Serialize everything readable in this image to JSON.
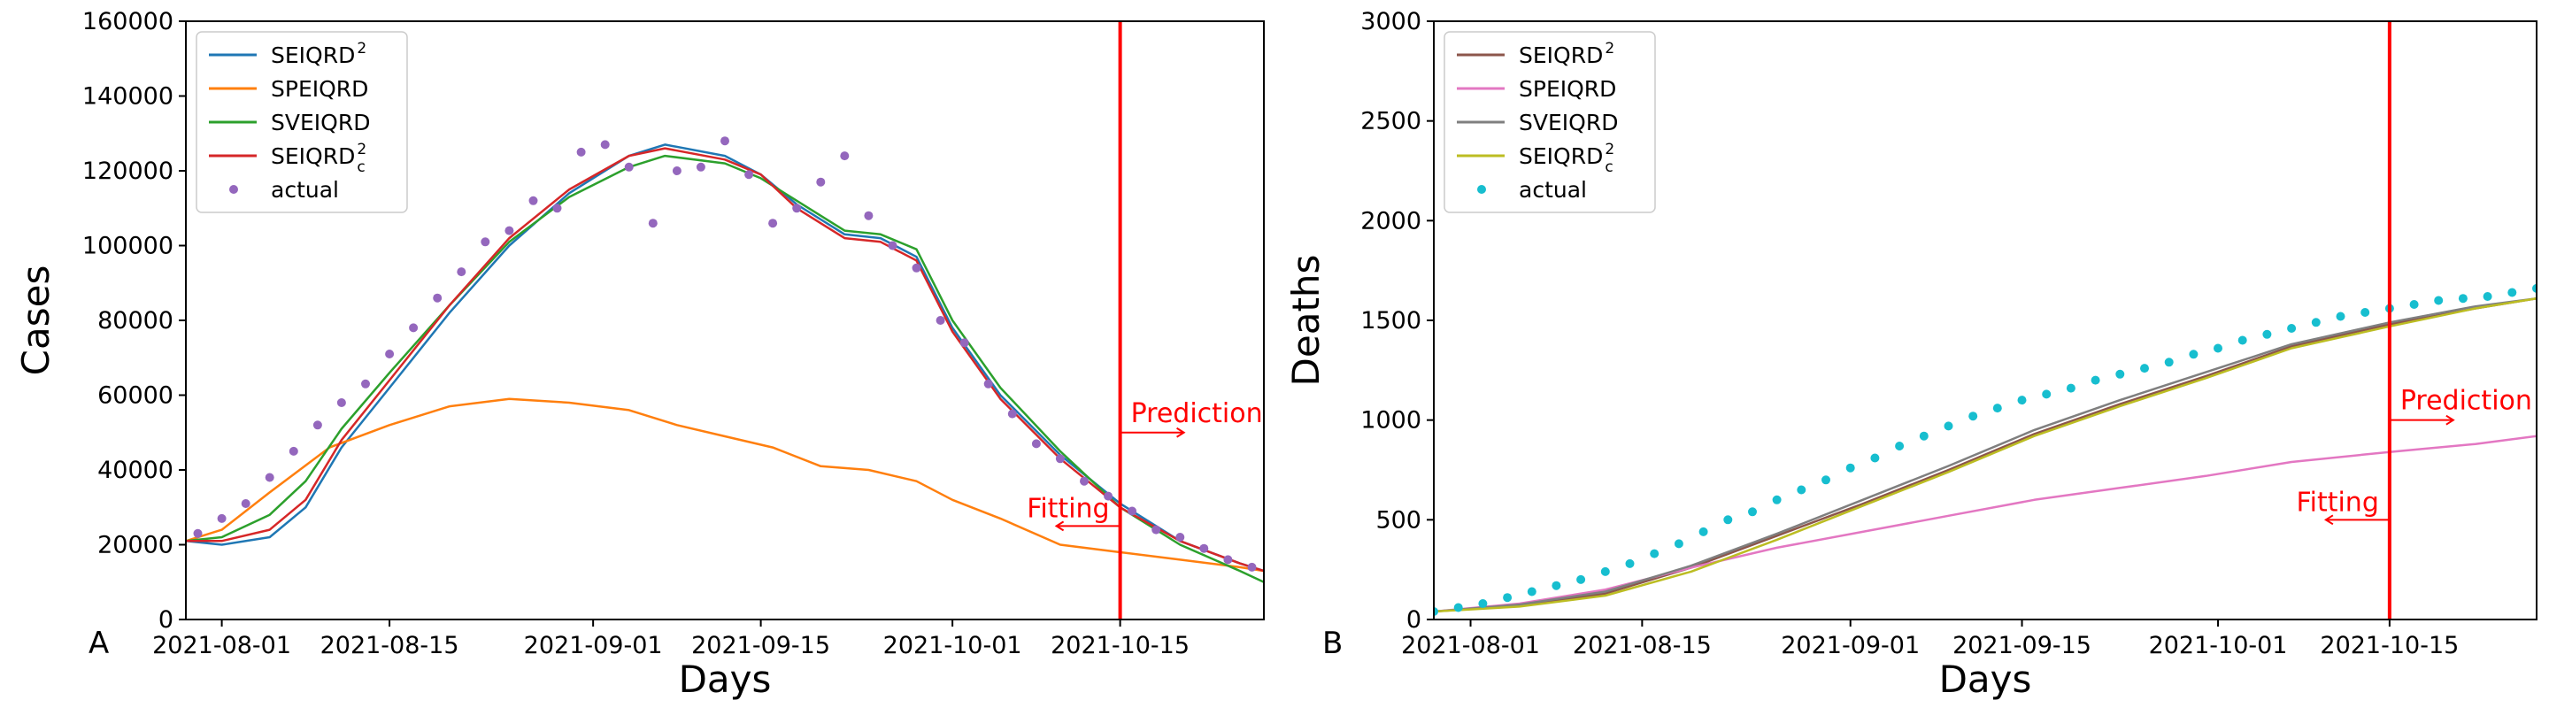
{
  "chart_data": [
    {
      "type": "line",
      "panel": "A",
      "xlabel": "Days",
      "ylabel": "Cases",
      "x_ticks": [
        "2021-08-01",
        "2021-08-15",
        "2021-09-01",
        "2021-09-15",
        "2021-10-01",
        "2021-10-15"
      ],
      "y_ticks": [
        "0",
        "20000",
        "40000",
        "60000",
        "80000",
        "100000",
        "120000",
        "140000",
        "160000"
      ],
      "xlim": [
        "2021-07-29",
        "2021-10-27"
      ],
      "ylim": [
        0,
        160000
      ],
      "split_date": "2021-10-15",
      "split_color": "#ff0000",
      "annotations": {
        "right": "Prediction",
        "left": "Fitting"
      },
      "legend_position": "top-left",
      "series": [
        {
          "name": "SEIQRD",
          "name_sup": "2",
          "name_sub": "",
          "color": "#1f77b4",
          "style": "line",
          "x": [
            "2021-07-29",
            "2021-08-01",
            "2021-08-05",
            "2021-08-08",
            "2021-08-11",
            "2021-08-15",
            "2021-08-20",
            "2021-08-25",
            "2021-08-30",
            "2021-09-04",
            "2021-09-07",
            "2021-09-12",
            "2021-09-15",
            "2021-09-18",
            "2021-09-22",
            "2021-09-25",
            "2021-09-28",
            "2021-10-01",
            "2021-10-05",
            "2021-10-10",
            "2021-10-15",
            "2021-10-20",
            "2021-10-25",
            "2021-10-27"
          ],
          "y": [
            21000,
            20000,
            22000,
            30000,
            46000,
            62000,
            82000,
            100000,
            114000,
            124000,
            127000,
            124000,
            119000,
            111000,
            103000,
            102000,
            97000,
            78000,
            60000,
            44000,
            31000,
            21000,
            15000,
            13000
          ]
        },
        {
          "name": "SPEIQRD",
          "name_sup": "",
          "name_sub": "",
          "color": "#ff7f0e",
          "style": "line",
          "x": [
            "2021-07-29",
            "2021-08-01",
            "2021-08-05",
            "2021-08-10",
            "2021-08-15",
            "2021-08-20",
            "2021-08-25",
            "2021-08-30",
            "2021-09-04",
            "2021-09-08",
            "2021-09-12",
            "2021-09-16",
            "2021-09-20",
            "2021-09-24",
            "2021-09-28",
            "2021-10-01",
            "2021-10-05",
            "2021-10-10",
            "2021-10-15",
            "2021-10-20",
            "2021-10-25",
            "2021-10-27"
          ],
          "y": [
            21000,
            24000,
            34000,
            46000,
            52000,
            57000,
            59000,
            58000,
            56000,
            52000,
            49000,
            46000,
            41000,
            40000,
            37000,
            32000,
            27000,
            20000,
            18000,
            16000,
            14000,
            13000
          ]
        },
        {
          "name": "SVEIQRD",
          "name_sup": "",
          "name_sub": "",
          "color": "#2ca02c",
          "style": "line",
          "x": [
            "2021-07-29",
            "2021-08-01",
            "2021-08-05",
            "2021-08-08",
            "2021-08-11",
            "2021-08-15",
            "2021-08-20",
            "2021-08-25",
            "2021-08-30",
            "2021-09-04",
            "2021-09-07",
            "2021-09-12",
            "2021-09-15",
            "2021-09-18",
            "2021-09-22",
            "2021-09-25",
            "2021-09-28",
            "2021-10-01",
            "2021-10-05",
            "2021-10-10",
            "2021-10-15",
            "2021-10-20",
            "2021-10-25",
            "2021-10-27"
          ],
          "y": [
            21000,
            22000,
            28000,
            37000,
            51000,
            66000,
            84000,
            101000,
            113000,
            121000,
            124000,
            122000,
            118000,
            112000,
            104000,
            103000,
            99000,
            80000,
            62000,
            45000,
            30000,
            20000,
            13000,
            10000
          ]
        },
        {
          "name": "SEIQRD",
          "name_sup": "2",
          "name_sub": "c",
          "color": "#d62728",
          "style": "line",
          "x": [
            "2021-07-29",
            "2021-08-01",
            "2021-08-05",
            "2021-08-08",
            "2021-08-11",
            "2021-08-15",
            "2021-08-20",
            "2021-08-25",
            "2021-08-30",
            "2021-09-04",
            "2021-09-07",
            "2021-09-12",
            "2021-09-15",
            "2021-09-18",
            "2021-09-22",
            "2021-09-25",
            "2021-09-28",
            "2021-10-01",
            "2021-10-05",
            "2021-10-10",
            "2021-10-15",
            "2021-10-20",
            "2021-10-25",
            "2021-10-27"
          ],
          "y": [
            21000,
            21000,
            24000,
            32000,
            48000,
            64000,
            84000,
            102000,
            115000,
            124000,
            126000,
            123000,
            119000,
            110000,
            102000,
            101000,
            96000,
            77000,
            59000,
            43000,
            30000,
            21000,
            15000,
            13000
          ]
        },
        {
          "name": "actual",
          "name_sup": "",
          "name_sub": "",
          "color": "#9467bd",
          "style": "scatter",
          "x": [
            "2021-07-30",
            "2021-08-01",
            "2021-08-03",
            "2021-08-05",
            "2021-08-07",
            "2021-08-09",
            "2021-08-11",
            "2021-08-13",
            "2021-08-15",
            "2021-08-17",
            "2021-08-19",
            "2021-08-21",
            "2021-08-23",
            "2021-08-25",
            "2021-08-27",
            "2021-08-29",
            "2021-08-31",
            "2021-09-02",
            "2021-09-04",
            "2021-09-06",
            "2021-09-08",
            "2021-09-10",
            "2021-09-12",
            "2021-09-14",
            "2021-09-16",
            "2021-09-18",
            "2021-09-20",
            "2021-09-22",
            "2021-09-24",
            "2021-09-26",
            "2021-09-28",
            "2021-09-30",
            "2021-10-02",
            "2021-10-04",
            "2021-10-06",
            "2021-10-08",
            "2021-10-10",
            "2021-10-12",
            "2021-10-14",
            "2021-10-16",
            "2021-10-18",
            "2021-10-20",
            "2021-10-22",
            "2021-10-24",
            "2021-10-26"
          ],
          "y": [
            23000,
            27000,
            31000,
            38000,
            45000,
            52000,
            58000,
            63000,
            71000,
            78000,
            86000,
            93000,
            101000,
            104000,
            112000,
            110000,
            125000,
            127000,
            121000,
            106000,
            120000,
            121000,
            128000,
            119000,
            106000,
            110000,
            117000,
            124000,
            108000,
            100000,
            94000,
            80000,
            74000,
            63000,
            55000,
            47000,
            43000,
            37000,
            33000,
            29000,
            24000,
            22000,
            19000,
            16000,
            14000
          ]
        }
      ]
    },
    {
      "type": "line",
      "panel": "B",
      "xlabel": "Days",
      "ylabel": "Deaths",
      "x_ticks": [
        "2021-08-01",
        "2021-08-15",
        "2021-09-01",
        "2021-09-15",
        "2021-10-01",
        "2021-10-15"
      ],
      "y_ticks": [
        "0",
        "500",
        "1000",
        "1500",
        "2000",
        "2500",
        "3000"
      ],
      "xlim": [
        "2021-07-29",
        "2021-10-27"
      ],
      "ylim": [
        0,
        3000
      ],
      "split_date": "2021-10-15",
      "split_color": "#ff0000",
      "annotations": {
        "right": "Prediction",
        "left": "Fitting"
      },
      "legend_position": "top-left",
      "series": [
        {
          "name": "SEIQRD",
          "name_sup": "2",
          "name_sub": "",
          "color": "#8c564b",
          "style": "line",
          "x": [
            "2021-07-29",
            "2021-08-05",
            "2021-08-12",
            "2021-08-19",
            "2021-08-26",
            "2021-09-02",
            "2021-09-09",
            "2021-09-16",
            "2021-09-23",
            "2021-09-30",
            "2021-10-07",
            "2021-10-15",
            "2021-10-22",
            "2021-10-27"
          ],
          "y": [
            40,
            70,
            130,
            260,
            420,
            580,
            750,
            930,
            1080,
            1220,
            1370,
            1480,
            1560,
            1610
          ]
        },
        {
          "name": "SPEIQRD",
          "name_sup": "",
          "name_sub": "",
          "color": "#e377c2",
          "style": "line",
          "x": [
            "2021-07-29",
            "2021-08-05",
            "2021-08-12",
            "2021-08-19",
            "2021-08-26",
            "2021-09-02",
            "2021-09-09",
            "2021-09-16",
            "2021-09-23",
            "2021-09-30",
            "2021-10-07",
            "2021-10-15",
            "2021-10-22",
            "2021-10-27"
          ],
          "y": [
            40,
            80,
            150,
            260,
            360,
            440,
            520,
            600,
            660,
            720,
            790,
            840,
            880,
            920
          ]
        },
        {
          "name": "SVEIQRD",
          "name_sup": "",
          "name_sub": "",
          "color": "#7f7f7f",
          "style": "line",
          "x": [
            "2021-07-29",
            "2021-08-05",
            "2021-08-12",
            "2021-08-19",
            "2021-08-26",
            "2021-09-02",
            "2021-09-09",
            "2021-09-16",
            "2021-09-23",
            "2021-09-30",
            "2021-10-07",
            "2021-10-15",
            "2021-10-22",
            "2021-10-27"
          ],
          "y": [
            40,
            75,
            140,
            270,
            430,
            600,
            770,
            950,
            1100,
            1240,
            1380,
            1490,
            1570,
            1610
          ]
        },
        {
          "name": "SEIQRD",
          "name_sup": "2",
          "name_sub": "c",
          "color": "#bcbd22",
          "style": "line",
          "x": [
            "2021-07-29",
            "2021-08-05",
            "2021-08-12",
            "2021-08-19",
            "2021-08-26",
            "2021-09-02",
            "2021-09-09",
            "2021-09-16",
            "2021-09-23",
            "2021-09-30",
            "2021-10-07",
            "2021-10-15",
            "2021-10-22",
            "2021-10-27"
          ],
          "y": [
            40,
            65,
            120,
            240,
            400,
            570,
            740,
            920,
            1070,
            1210,
            1360,
            1470,
            1560,
            1610
          ]
        },
        {
          "name": "actual",
          "name_sup": "",
          "name_sub": "",
          "color": "#17becf",
          "style": "scatter",
          "x": [
            "2021-07-29",
            "2021-07-31",
            "2021-08-02",
            "2021-08-04",
            "2021-08-06",
            "2021-08-08",
            "2021-08-10",
            "2021-08-12",
            "2021-08-14",
            "2021-08-16",
            "2021-08-18",
            "2021-08-20",
            "2021-08-22",
            "2021-08-24",
            "2021-08-26",
            "2021-08-28",
            "2021-08-30",
            "2021-09-01",
            "2021-09-03",
            "2021-09-05",
            "2021-09-07",
            "2021-09-09",
            "2021-09-11",
            "2021-09-13",
            "2021-09-15",
            "2021-09-17",
            "2021-09-19",
            "2021-09-21",
            "2021-09-23",
            "2021-09-25",
            "2021-09-27",
            "2021-09-29",
            "2021-10-01",
            "2021-10-03",
            "2021-10-05",
            "2021-10-07",
            "2021-10-09",
            "2021-10-11",
            "2021-10-13",
            "2021-10-15",
            "2021-10-17",
            "2021-10-19",
            "2021-10-21",
            "2021-10-23",
            "2021-10-25",
            "2021-10-27"
          ],
          "y": [
            40,
            60,
            80,
            110,
            140,
            170,
            200,
            240,
            280,
            330,
            380,
            440,
            500,
            540,
            600,
            650,
            700,
            760,
            810,
            870,
            920,
            970,
            1020,
            1060,
            1100,
            1130,
            1160,
            1200,
            1230,
            1260,
            1290,
            1330,
            1360,
            1400,
            1430,
            1460,
            1490,
            1520,
            1540,
            1560,
            1580,
            1600,
            1610,
            1620,
            1640,
            1660
          ]
        }
      ]
    }
  ]
}
